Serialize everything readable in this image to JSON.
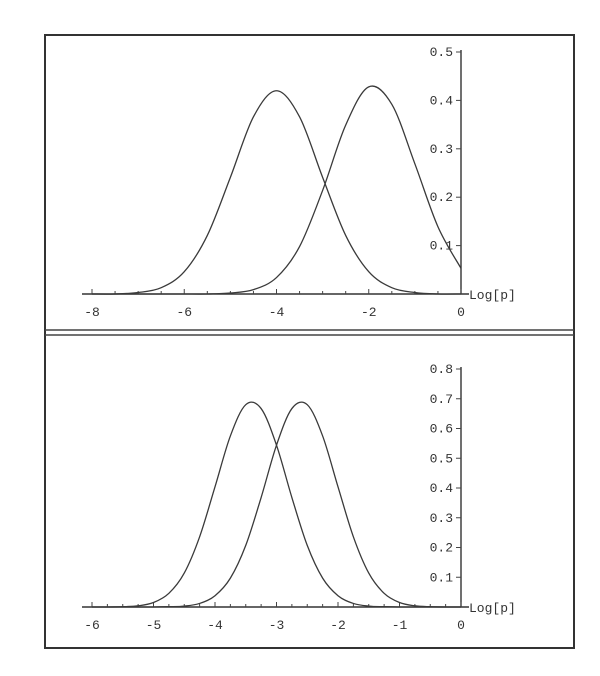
{
  "chart_data": [
    {
      "type": "line",
      "xlabel": "Log[p]",
      "ylabel": "",
      "xlim": [
        -8,
        0
      ],
      "ylim": [
        0,
        0.5
      ],
      "x_ticks": [
        "-8",
        "-6",
        "-4",
        "-2",
        "0"
      ],
      "x_tick_values": [
        -8,
        -6,
        -4,
        -2,
        0
      ],
      "y_ticks": [
        "0.1",
        "0.2",
        "0.3",
        "0.4",
        "0.5"
      ],
      "y_tick_values": [
        0.1,
        0.2,
        0.3,
        0.4,
        0.5
      ],
      "grid": false,
      "x": [
        -8,
        -7.5,
        -7,
        -6.5,
        -6,
        -5.5,
        -5,
        -4.5,
        -4,
        -3.5,
        -3,
        -2.5,
        -2,
        -1.5,
        -1,
        -0.5,
        0
      ],
      "series": [
        {
          "values": [
            0.0,
            0.0,
            0.003,
            0.013,
            0.046,
            0.121,
            0.241,
            0.366,
            0.42,
            0.366,
            0.241,
            0.121,
            0.046,
            0.013,
            0.003,
            0.0,
            0.0
          ]
        },
        {
          "values": [
            0.0,
            0.0,
            0.0,
            0.0,
            0.0,
            0.0,
            0.002,
            0.009,
            0.034,
            0.098,
            0.214,
            0.349,
            0.428,
            0.392,
            0.269,
            0.139,
            0.053
          ]
        }
      ]
    },
    {
      "type": "line",
      "xlabel": "Log[p]",
      "ylabel": "",
      "xlim": [
        -6,
        0
      ],
      "ylim": [
        0,
        0.8
      ],
      "x_ticks": [
        "-6",
        "-5",
        "-4",
        "-3",
        "-2",
        "-1",
        "0"
      ],
      "x_tick_values": [
        -6,
        -5,
        -4,
        -3,
        -2,
        -1,
        0
      ],
      "y_ticks": [
        "0.1",
        "0.2",
        "0.3",
        "0.4",
        "0.5",
        "0.6",
        "0.7",
        "0.8"
      ],
      "y_tick_values": [
        0.1,
        0.2,
        0.3,
        0.4,
        0.5,
        0.6,
        0.7,
        0.8
      ],
      "grid": false,
      "x": [
        -6,
        -5.75,
        -5.5,
        -5.25,
        -5,
        -4.75,
        -4.5,
        -4.25,
        -4,
        -3.75,
        -3.5,
        -3.25,
        -3,
        -2.75,
        -2.5,
        -2.25,
        -2,
        -1.75,
        -1.5,
        -1.25,
        -1,
        -0.75,
        -0.5,
        -0.25,
        0
      ],
      "series": [
        {
          "values": [
            0.0,
            0.0,
            0.001,
            0.004,
            0.015,
            0.046,
            0.114,
            0.236,
            0.404,
            0.575,
            0.68,
            0.667,
            0.544,
            0.368,
            0.207,
            0.097,
            0.038,
            0.012,
            0.003,
            0.001,
            0.0,
            0.0,
            0.0,
            0.0,
            0.0
          ]
        },
        {
          "values": [
            0.0,
            0.0,
            0.0,
            0.0,
            0.0,
            0.001,
            0.003,
            0.012,
            0.038,
            0.097,
            0.207,
            0.368,
            0.544,
            0.667,
            0.68,
            0.575,
            0.404,
            0.236,
            0.114,
            0.046,
            0.015,
            0.004,
            0.001,
            0.0,
            0.0
          ]
        }
      ]
    }
  ]
}
